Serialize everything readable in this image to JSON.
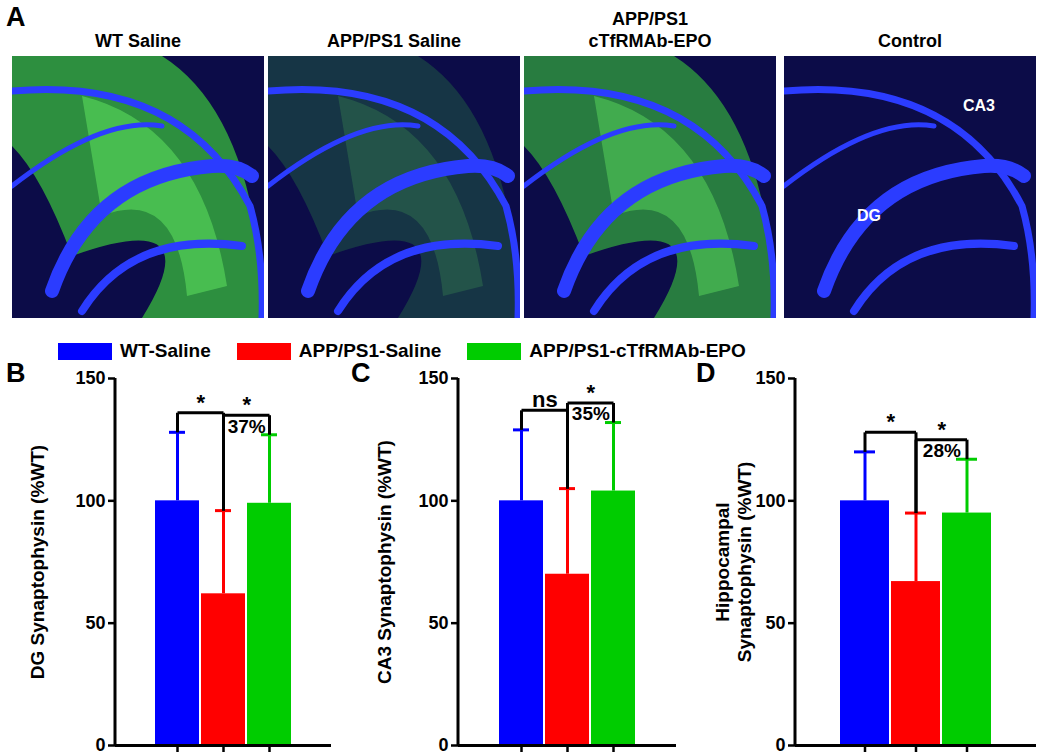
{
  "panel_a": {
    "label": "A",
    "images": [
      {
        "title": "WT Saline"
      },
      {
        "title": "APP/PS1 Saline"
      },
      {
        "title": "APP/PS1\ncTfRMAb-EPO"
      },
      {
        "title": "Control",
        "annotations": [
          "CA3",
          "DG"
        ]
      }
    ]
  },
  "chart_data": [
    {
      "panel_label": "B",
      "type": "bar",
      "ylabel": "DG Synaptophysin (%WT)",
      "categories": [
        null,
        null,
        null
      ],
      "series": [
        {
          "name": "WT-Saline",
          "color": "#0000ff",
          "values": [
            100,
            null,
            null
          ],
          "errors": [
            28,
            null,
            null
          ]
        },
        {
          "name": "APP/PS1-Saline",
          "color": "#ff0000",
          "values": [
            null,
            62,
            null
          ],
          "errors": [
            null,
            34,
            null
          ]
        },
        {
          "name": "APP/PS1-cTfRMAb-EPO",
          "color": "#00cc00",
          "values": [
            null,
            null,
            99
          ],
          "errors": [
            null,
            null,
            28
          ]
        }
      ],
      "ylim": [
        0,
        150
      ],
      "yticks": [
        0,
        50,
        100,
        150
      ],
      "significance": [
        {
          "from": 0,
          "to": 1,
          "text": "*"
        },
        {
          "from": 1,
          "to": 2,
          "text": "*",
          "change": "37%"
        }
      ]
    },
    {
      "panel_label": "C",
      "type": "bar",
      "ylabel": "CA3 Synaptophysin (%WT)",
      "categories": [
        null,
        null,
        null
      ],
      "series": [
        {
          "name": "WT-Saline",
          "color": "#0000ff",
          "values": [
            100,
            null,
            null
          ],
          "errors": [
            29,
            null,
            null
          ]
        },
        {
          "name": "APP/PS1-Saline",
          "color": "#ff0000",
          "values": [
            null,
            70,
            null
          ],
          "errors": [
            null,
            35,
            null
          ]
        },
        {
          "name": "APP/PS1-cTfRMAb-EPO",
          "color": "#00cc00",
          "values": [
            null,
            null,
            104
          ],
          "errors": [
            null,
            null,
            28
          ]
        }
      ],
      "ylim": [
        0,
        150
      ],
      "yticks": [
        0,
        50,
        100,
        150
      ],
      "significance": [
        {
          "from": 0,
          "to": 1,
          "text": "ns"
        },
        {
          "from": 1,
          "to": 2,
          "text": "*",
          "change": "35%"
        }
      ]
    },
    {
      "panel_label": "D",
      "type": "bar",
      "ylabel": "Hippocampal\nSynaptophysin (%WT)",
      "categories": [
        null,
        null,
        null
      ],
      "series": [
        {
          "name": "WT-Saline",
          "color": "#0000ff",
          "values": [
            100,
            null,
            null
          ],
          "errors": [
            20,
            null,
            null
          ]
        },
        {
          "name": "APP/PS1-Saline",
          "color": "#ff0000",
          "values": [
            null,
            67,
            null
          ],
          "errors": [
            null,
            28,
            null
          ]
        },
        {
          "name": "APP/PS1-cTfRMAb-EPO",
          "color": "#00cc00",
          "values": [
            null,
            null,
            95
          ],
          "errors": [
            null,
            null,
            22
          ]
        }
      ],
      "ylim": [
        0,
        150
      ],
      "yticks": [
        0,
        50,
        100,
        150
      ],
      "significance": [
        {
          "from": 0,
          "to": 1,
          "text": "*"
        },
        {
          "from": 1,
          "to": 2,
          "text": "*",
          "change": "28%"
        }
      ]
    }
  ]
}
